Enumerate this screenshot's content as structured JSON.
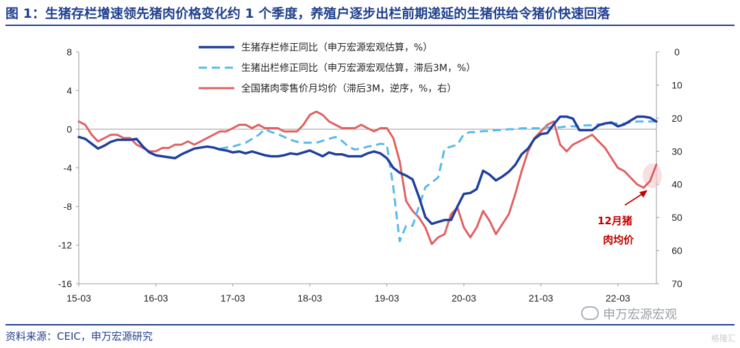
{
  "header": {
    "title": "图 1：生猪存栏增速领先猪肉价格变化约 1 个季度，养殖户逐步出栏前期递延的生猪供给令猪价快速回落"
  },
  "footer": {
    "source": "资料来源：CEIC，申万宏源研究",
    "watermark": "申万宏源宏观",
    "logo": "格隆汇"
  },
  "colors": {
    "inventory": "#1f3f9f",
    "slaughter": "#56b8ee",
    "price": "#e06060",
    "title": "#1f3f8f"
  },
  "chart_data": {
    "type": "line",
    "x_ticks": [
      "15-03",
      "16-03",
      "17-03",
      "18-03",
      "19-03",
      "20-03",
      "21-03",
      "22-03"
    ],
    "y_left": {
      "range": [
        -16,
        8
      ],
      "ticks": [
        "8",
        "4",
        "0",
        "-4",
        "-8",
        "-12",
        "-16"
      ]
    },
    "y_right": {
      "range": [
        0,
        70
      ],
      "inverted": true,
      "ticks": [
        "0",
        "10",
        "20",
        "30",
        "40",
        "50",
        "60",
        "70"
      ]
    },
    "annotation": {
      "line1": "12月猪",
      "line2": "肉均价"
    },
    "series": [
      {
        "name": "生猪存栏修正同比（申万宏源宏观估算，%）",
        "axis": "left",
        "style": "solid",
        "start": "2015-03",
        "step": "month",
        "values": [
          -0.8,
          -1.0,
          -1.5,
          -2.0,
          -1.7,
          -1.3,
          -1.1,
          -1.1,
          -1.1,
          -1.0,
          -1.8,
          -2.4,
          -2.7,
          -2.8,
          -2.9,
          -3.0,
          -2.6,
          -2.3,
          -2.0,
          -1.9,
          -1.8,
          -1.9,
          -2.1,
          -2.2,
          -2.4,
          -2.3,
          -2.5,
          -2.3,
          -2.5,
          -2.7,
          -2.8,
          -2.8,
          -2.7,
          -2.5,
          -2.6,
          -2.4,
          -2.2,
          -2.5,
          -2.8,
          -2.4,
          -2.6,
          -2.6,
          -2.8,
          -2.8,
          -2.8,
          -2.5,
          -2.3,
          -2.5,
          -3.0,
          -4.0,
          -4.5,
          -4.8,
          -5.2,
          -7.0,
          -9.1,
          -9.8,
          -9.6,
          -9.4,
          -9.4,
          -8.0,
          -6.7,
          -6.6,
          -6.2,
          -4.3,
          -4.7,
          -5.3,
          -4.9,
          -4.4,
          -3.7,
          -2.6,
          -2.0,
          -1.0,
          -0.5,
          -0.4,
          0.5,
          1.3,
          1.3,
          1.1,
          -0.1,
          -0.1,
          -0.1,
          0.4,
          0.6,
          0.7,
          0.3,
          0.5,
          0.9,
          1.3,
          1.3,
          1.2,
          0.8
        ]
      },
      {
        "name": "生猪出栏修正同比（申万宏源宏观估算，滞后3M，%）",
        "axis": "left",
        "style": "dashed",
        "start": "2015-03",
        "step": "month",
        "values": [
          null,
          null,
          null,
          null,
          null,
          null,
          null,
          null,
          null,
          null,
          null,
          null,
          null,
          null,
          null,
          null,
          null,
          null,
          null,
          null,
          null,
          null,
          -2.0,
          -1.9,
          -1.8,
          -1.6,
          -1.4,
          -1.0,
          -0.6,
          0.0,
          -0.3,
          -0.5,
          -0.8,
          -1.1,
          -1.3,
          -1.4,
          -1.4,
          -1.4,
          -1.2,
          -1.0,
          -0.8,
          -1.2,
          -1.8,
          -2.1,
          -2.0,
          -1.8,
          -1.7,
          -1.5,
          -1.6,
          -6.0,
          -11.6,
          -10.0,
          -10.0,
          -8.0,
          -6.0,
          -5.5,
          -5.0,
          -2.0,
          -1.8,
          -1.6,
          -0.5,
          -0.3,
          -0.3,
          -0.2,
          -0.2,
          -0.1,
          -0.1,
          0.0,
          0.0,
          0.1,
          0.1,
          0.1,
          0.1,
          0.2,
          0.2,
          0.2,
          0.3,
          0.3,
          0.3,
          0.4,
          0.4,
          0.5,
          0.5,
          0.6,
          0.6,
          0.6,
          0.7,
          0.8,
          0.8,
          0.8,
          0.8
        ]
      },
      {
        "name": "全国猪肉零售价月均价（滞后3M，逆序，%，右）",
        "axis": "right",
        "style": "solid",
        "start": "2015-03",
        "step": "month",
        "values": [
          21,
          22,
          25,
          27,
          26,
          25,
          25,
          26,
          26,
          28,
          29,
          30,
          30,
          29,
          29,
          28,
          28,
          27,
          28,
          27,
          26,
          25,
          24,
          24,
          23,
          22,
          22,
          23,
          22,
          23,
          23,
          23,
          24,
          24,
          24,
          22,
          19,
          18,
          19,
          21,
          22,
          23,
          23,
          23,
          22,
          23,
          24,
          23,
          23,
          26,
          33,
          45,
          48,
          50,
          53,
          58,
          56,
          55,
          49,
          47,
          53,
          56,
          53,
          48,
          51,
          55,
          52,
          49,
          43,
          36,
          30,
          26,
          24,
          22,
          21,
          28,
          30,
          28,
          27,
          26,
          25,
          27,
          29,
          32,
          35,
          36,
          38,
          40,
          41,
          39,
          34
        ]
      }
    ]
  }
}
